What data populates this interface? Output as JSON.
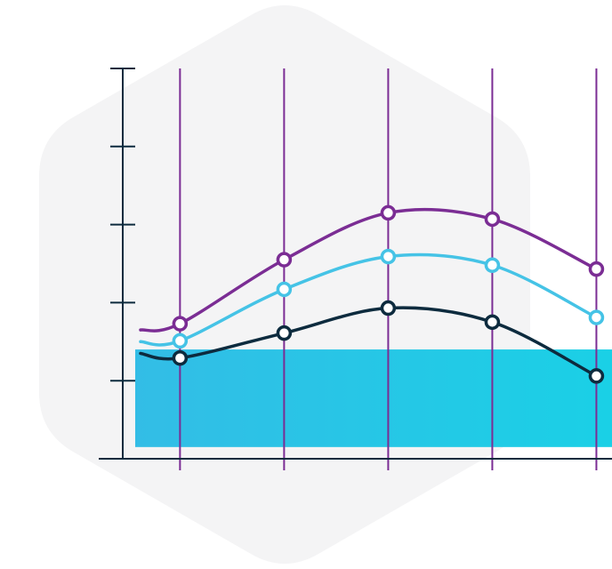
{
  "colors": {
    "background_shape": "#f4f4f5",
    "axis": "#0d2b3e",
    "grid": "#7b2d94",
    "band_start": "#33bde6",
    "band_end": "#1ad0e6"
  },
  "chart_data": {
    "type": "line",
    "title": "",
    "xlabel": "",
    "ylabel": "",
    "x": [
      1,
      2,
      3,
      4,
      5
    ],
    "xlim": [
      0.45,
      5.15
    ],
    "ylim": [
      0,
      5
    ],
    "y_ticks": [
      1,
      2,
      3,
      4,
      5
    ],
    "grid": "vertical",
    "band": {
      "from": 0.15,
      "to": 1.4
    },
    "series": [
      {
        "color": "#7b2d94",
        "start": 1.65,
        "values": [
          1.73,
          2.55,
          3.15,
          3.07,
          2.43
        ]
      },
      {
        "color": "#45c3e6",
        "start": 1.5,
        "values": [
          1.51,
          2.17,
          2.59,
          2.48,
          1.81
        ]
      },
      {
        "color": "#0d2b3e",
        "start": 1.35,
        "values": [
          1.29,
          1.61,
          1.93,
          1.75,
          1.06
        ]
      }
    ]
  }
}
